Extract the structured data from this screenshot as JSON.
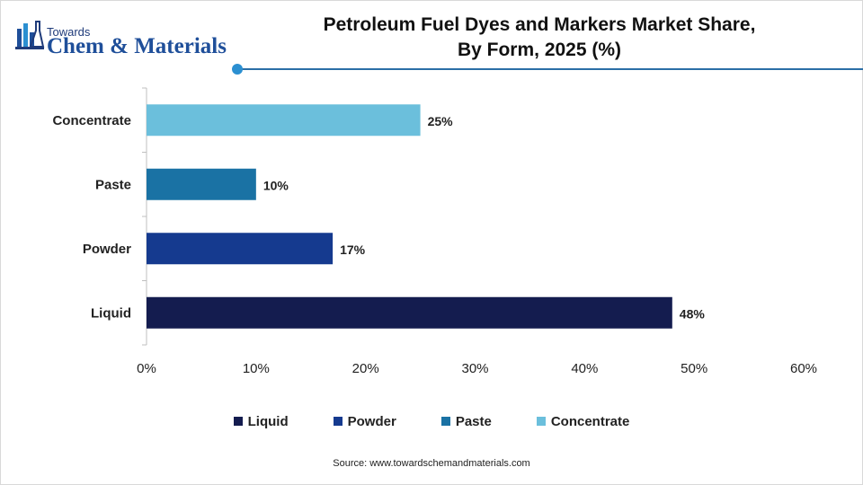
{
  "brand": {
    "small": "Towards",
    "big": "Chem & Materials",
    "icon": "flask-building-icon"
  },
  "title_lines": [
    "Petroleum Fuel Dyes and Markers Market Share,",
    "By Form, 2025 (%)"
  ],
  "source": "Source: www.towardschemandmaterials.com",
  "colors": {
    "Liquid": "#141c4f",
    "Powder": "#153a8f",
    "Paste": "#1a72a4",
    "Concentrate": "#6bbfdc",
    "divider": "#2b6ea6"
  },
  "chart_data": {
    "type": "bar",
    "orientation": "horizontal",
    "categories": [
      "Concentrate",
      "Paste",
      "Powder",
      "Liquid"
    ],
    "values": [
      25,
      10,
      17,
      48
    ],
    "data_labels": [
      "25%",
      "10%",
      "17%",
      "48%"
    ],
    "x_ticks": [
      "0%",
      "10%",
      "20%",
      "30%",
      "40%",
      "50%",
      "60%"
    ],
    "xlim": [
      0,
      60
    ],
    "grid": false,
    "legend_position": "bottom",
    "legend": [
      "Liquid",
      "Powder",
      "Paste",
      "Concentrate"
    ]
  }
}
